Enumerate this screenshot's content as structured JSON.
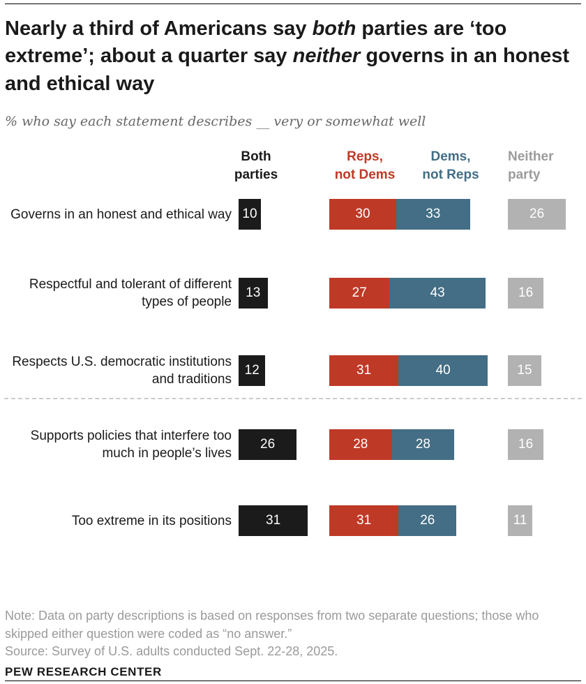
{
  "header": {
    "title_p1": "Nearly a third of Americans say ",
    "title_em1": "both",
    "title_p2": " parties are ‘too extreme’; about a quarter say ",
    "title_em2": "neither",
    "title_p3": " governs in an honest and ethical way",
    "subtitle": "% who say each statement describes __ very or somewhat well"
  },
  "columns": [
    {
      "line1": "Both",
      "line2": "parties",
      "color": "#1b1b1b"
    },
    {
      "line1": "Reps,",
      "line2": "not Dems",
      "color": "#bf3927"
    },
    {
      "line1": "Dems,",
      "line2": "not Reps",
      "color": "#436e85"
    },
    {
      "line1": "Neither",
      "line2": "party",
      "color": "#9b9b9b"
    }
  ],
  "chart_data": {
    "type": "bar",
    "orientation": "horizontal",
    "unit": "percent",
    "title": "Nearly a third of Americans say both parties are ‘too extreme’; about a quarter say neither governs in an honest and ethical way",
    "subtitle": "% who say each statement describes __ very or somewhat well",
    "categories": [
      "Governs in an honest and ethical way",
      "Respectful and tolerant of different types of people",
      "Respects U.S. democratic institutions and traditions",
      "Supports policies that interfere too much in people’s lives",
      "Too extreme in its positions"
    ],
    "series": [
      {
        "name": "Both parties",
        "color": "#1b1b1b",
        "values": [
          10,
          13,
          12,
          26,
          31
        ]
      },
      {
        "name": "Reps, not Dems",
        "color": "#bf3927",
        "values": [
          30,
          27,
          31,
          28,
          31
        ]
      },
      {
        "name": "Dems, not Reps",
        "color": "#436e85",
        "values": [
          33,
          43,
          40,
          28,
          26
        ]
      },
      {
        "name": "Neither party",
        "color": "#b2b2b2",
        "values": [
          26,
          16,
          15,
          16,
          11
        ]
      }
    ],
    "value_labels": "inside, white",
    "divider_after_category_index": 2,
    "legend_position": "column headers above bars",
    "grid": false
  },
  "footer": {
    "note": "Note: Data on party descriptions is based on responses from two separate questions; those who skipped either question were coded as “no answer.”",
    "source": "Source: Survey of U.S. adults conducted Sept. 22-28, 2025.",
    "brand": "PEW RESEARCH CENTER"
  }
}
